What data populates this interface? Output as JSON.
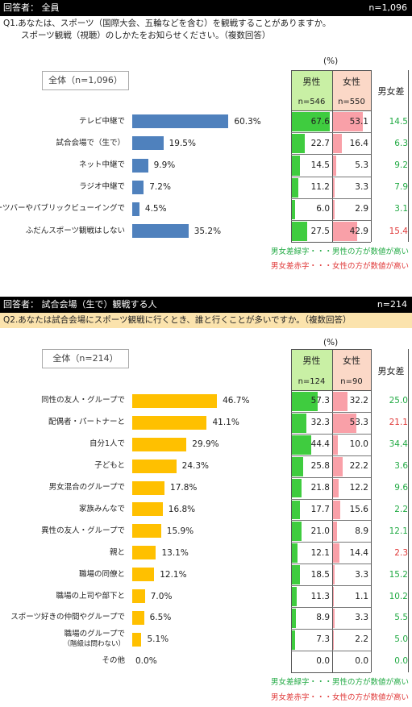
{
  "colors": {
    "male_bar": "#3fcc3f",
    "female_bar": "#f9a0a8",
    "male_header": "#c9f0a5",
    "female_header": "#fbd8c7",
    "diff_green": "#22aa44",
    "diff_red": "#e03a3a",
    "q1_bar": "#4f81bd",
    "q2_bar": "#ffc000"
  },
  "section1": {
    "respondents": "回答者： 全員",
    "n_total": "n=1,096",
    "question_line1": "Q1.あなたは、スポーツ（国際大会、五輪などを含む）を観戦することがありますか。",
    "question_line2": "スポーツ観戦（視聴）のしかたをお知らせください。（複数回答）",
    "unit": "(%)",
    "overall_label": "全体（n=1,096）",
    "male_header": "男性",
    "male_n": "n=546",
    "female_header": "女性",
    "female_n": "n=550",
    "diff_header": "男女差",
    "note_green": "男女差緑字・・・男性の方が数値が高い",
    "note_red": "男女差赤字・・・女性の方が数値が高い"
  },
  "section2": {
    "respondents": "回答者： 試合会場（生で）観戦する人",
    "n_total": "n=214",
    "question": "Q2.あなたは試合会場にスポーツ観戦に行くとき、誰と行くことが多いですか。（複数回答）",
    "unit": "(%)",
    "overall_label": "全体（n=214）",
    "male_header": "男性",
    "male_n": "n=124",
    "female_header": "女性",
    "female_n": "n=90",
    "diff_header": "男女差",
    "note_green": "男女差緑字・・・男性の方が数値が高い",
    "note_red": "男女差赤字・・・女性の方が数値が高い"
  },
  "chart_data": [
    {
      "type": "bar",
      "orientation": "horizontal",
      "categories": [
        "テレビ中継で",
        "試合会場で（生で）",
        "ネット中継で",
        "ラジオ中継で",
        "スポーツバーやパブリックビューイングで",
        "ふだんスポーツ観戦はしない"
      ],
      "values": [
        60.3,
        19.5,
        9.9,
        7.2,
        4.5,
        35.2
      ],
      "value_labels": [
        "60.3%",
        "19.5%",
        "9.9%",
        "7.2%",
        "4.5%",
        "35.2%"
      ],
      "male": [
        67.6,
        22.7,
        14.5,
        11.2,
        6.0,
        27.5
      ],
      "female": [
        53.1,
        16.4,
        5.3,
        3.3,
        2.9,
        42.9
      ],
      "diff": [
        14.5,
        6.3,
        9.2,
        7.9,
        3.1,
        15.4
      ],
      "diff_sign": [
        "male",
        "male",
        "male",
        "male",
        "male",
        "female"
      ]
    },
    {
      "type": "bar",
      "orientation": "horizontal",
      "categories": [
        "同性の友人・グループで",
        "配偶者・パートナーと",
        "自分1人で",
        "子どもと",
        "男女混合のグループで",
        "家族みんなで",
        "異性の友人・グループで",
        "親と",
        "職場の同僚と",
        "職場の上司や部下と",
        "スポーツ好きの仲間やグループで",
        "職場のグループで（階級は問わない）",
        "その他"
      ],
      "values": [
        46.7,
        41.1,
        29.9,
        24.3,
        17.8,
        16.8,
        15.9,
        13.1,
        12.1,
        7.0,
        6.5,
        5.1,
        0.0
      ],
      "value_labels": [
        "46.7%",
        "41.1%",
        "29.9%",
        "24.3%",
        "17.8%",
        "16.8%",
        "15.9%",
        "13.1%",
        "12.1%",
        "7.0%",
        "6.5%",
        "5.1%",
        "0.0%"
      ],
      "male": [
        57.3,
        32.3,
        44.4,
        25.8,
        21.8,
        17.7,
        21.0,
        12.1,
        18.5,
        11.3,
        8.9,
        7.3,
        0.0
      ],
      "female": [
        32.2,
        53.3,
        10.0,
        22.2,
        12.2,
        15.6,
        8.9,
        14.4,
        3.3,
        1.1,
        3.3,
        2.2,
        0.0
      ],
      "diff": [
        25.0,
        21.1,
        34.4,
        3.6,
        9.6,
        2.2,
        12.1,
        2.3,
        15.2,
        10.2,
        5.5,
        5.0,
        0.0
      ],
      "diff_sign": [
        "male",
        "female",
        "male",
        "male",
        "male",
        "male",
        "male",
        "female",
        "male",
        "male",
        "male",
        "male",
        "male"
      ]
    }
  ]
}
